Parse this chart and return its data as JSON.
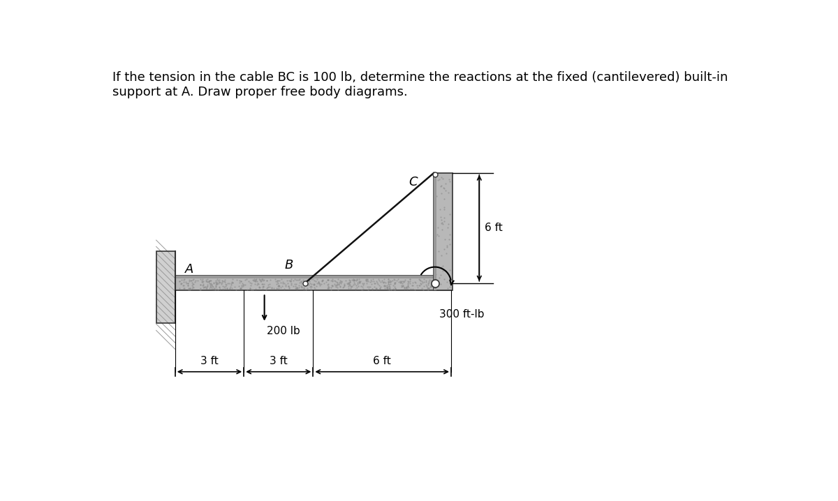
{
  "title_line1": "If the tension in the cable BC is 100 lb, determine the reactions at the fixed (cantilevered) built-in",
  "title_line2": "support at A. Draw proper free body diagrams.",
  "title_fontsize": 13.0,
  "bg_color": "#ffffff",
  "cable_color": "#111111",
  "label_A": "A",
  "label_B": "B",
  "label_C": "C",
  "label_200lb": "200 lb",
  "label_300ftlb": "300 ft-lb",
  "label_6ft": "6 ft",
  "dim_3ft_1": "3 ft",
  "dim_3ft_2": "3 ft",
  "dim_6ft": "6 ft",
  "wall_hatch_color": "#999999",
  "beam_face_color": "#b8b8b8",
  "beam_edge_color": "#333333",
  "beam_dark_color": "#888888"
}
